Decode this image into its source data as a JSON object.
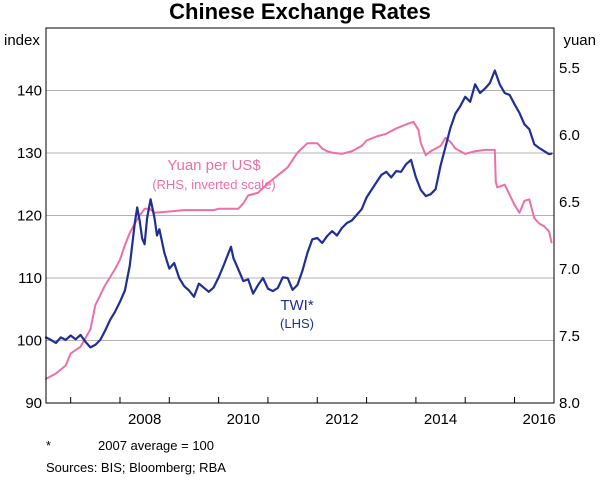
{
  "chart_data": {
    "type": "line",
    "title": "Chinese Exchange Rates",
    "left_axis": {
      "unit": "index",
      "ylim": [
        90,
        150
      ],
      "ticks": [
        90,
        100,
        110,
        120,
        130,
        140
      ]
    },
    "right_axis": {
      "unit": "yuan",
      "ylim": [
        5.2,
        8.0
      ],
      "inverted": true,
      "ticks": [
        5.5,
        6.0,
        6.5,
        7.0,
        7.5,
        8.0
      ],
      "tick_labels": [
        "5.5",
        "6.0",
        "6.5",
        "7.0",
        "7.5",
        "8.0"
      ]
    },
    "x_axis": {
      "xlim": [
        2006.5,
        2016.8
      ],
      "ticks": [
        2008,
        2010,
        2012,
        2014,
        2016
      ]
    },
    "grid": "horizontal",
    "series": [
      {
        "name": "Yuan per US$",
        "sublabel": "(RHS, inverted scale)",
        "axis": "right",
        "color": "#ee6fa8",
        "points": [
          [
            2006.5,
            7.82
          ],
          [
            2006.7,
            7.78
          ],
          [
            2006.9,
            7.72
          ],
          [
            2007.0,
            7.63
          ],
          [
            2007.2,
            7.58
          ],
          [
            2007.4,
            7.45
          ],
          [
            2007.5,
            7.27
          ],
          [
            2007.7,
            7.12
          ],
          [
            2007.9,
            7.0
          ],
          [
            2008.0,
            6.93
          ],
          [
            2008.1,
            6.82
          ],
          [
            2008.2,
            6.73
          ],
          [
            2008.3,
            6.66
          ],
          [
            2008.4,
            6.6
          ],
          [
            2008.5,
            6.55
          ],
          [
            2008.6,
            6.55
          ],
          [
            2008.7,
            6.58
          ],
          [
            2009.0,
            6.57
          ],
          [
            2009.3,
            6.56
          ],
          [
            2009.6,
            6.56
          ],
          [
            2009.9,
            6.56
          ],
          [
            2010.0,
            6.55
          ],
          [
            2010.2,
            6.55
          ],
          [
            2010.4,
            6.55
          ],
          [
            2010.5,
            6.51
          ],
          [
            2010.6,
            6.45
          ],
          [
            2010.8,
            6.43
          ],
          [
            2011.0,
            6.36
          ],
          [
            2011.2,
            6.3
          ],
          [
            2011.4,
            6.24
          ],
          [
            2011.6,
            6.13
          ],
          [
            2011.8,
            6.06
          ],
          [
            2012.0,
            6.06
          ],
          [
            2012.1,
            6.1
          ],
          [
            2012.2,
            6.12
          ],
          [
            2012.3,
            6.13
          ],
          [
            2012.5,
            6.14
          ],
          [
            2012.7,
            6.12
          ],
          [
            2012.9,
            6.08
          ],
          [
            2013.0,
            6.04
          ],
          [
            2013.2,
            6.01
          ],
          [
            2013.4,
            5.99
          ],
          [
            2013.6,
            5.95
          ],
          [
            2013.8,
            5.92
          ],
          [
            2013.95,
            5.9
          ],
          [
            2014.05,
            5.96
          ],
          [
            2014.1,
            6.06
          ],
          [
            2014.2,
            6.15
          ],
          [
            2014.3,
            6.12
          ],
          [
            2014.5,
            6.08
          ],
          [
            2014.6,
            6.02
          ],
          [
            2014.7,
            6.05
          ],
          [
            2014.8,
            6.1
          ],
          [
            2015.0,
            6.14
          ],
          [
            2015.2,
            6.12
          ],
          [
            2015.4,
            6.11
          ],
          [
            2015.6,
            6.11
          ],
          [
            2015.62,
            6.35
          ],
          [
            2015.65,
            6.39
          ],
          [
            2015.8,
            6.37
          ],
          [
            2016.0,
            6.52
          ],
          [
            2016.1,
            6.58
          ],
          [
            2016.2,
            6.49
          ],
          [
            2016.3,
            6.48
          ],
          [
            2016.4,
            6.62
          ],
          [
            2016.5,
            6.66
          ],
          [
            2016.6,
            6.68
          ],
          [
            2016.7,
            6.72
          ],
          [
            2016.75,
            6.8
          ]
        ]
      },
      {
        "name": "TWI*",
        "sublabel": "(LHS)",
        "axis": "left",
        "color": "#1f2f94",
        "points": [
          [
            2006.5,
            100.5
          ],
          [
            2006.6,
            100.1
          ],
          [
            2006.7,
            99.6
          ],
          [
            2006.8,
            100.5
          ],
          [
            2006.9,
            100.1
          ],
          [
            2007.0,
            100.8
          ],
          [
            2007.1,
            100.2
          ],
          [
            2007.2,
            100.9
          ],
          [
            2007.3,
            99.8
          ],
          [
            2007.4,
            98.9
          ],
          [
            2007.5,
            99.3
          ],
          [
            2007.6,
            100.1
          ],
          [
            2007.7,
            101.6
          ],
          [
            2007.8,
            103.3
          ],
          [
            2007.9,
            104.6
          ],
          [
            2008.0,
            106.2
          ],
          [
            2008.1,
            108.0
          ],
          [
            2008.2,
            112.0
          ],
          [
            2008.3,
            118.8
          ],
          [
            2008.35,
            121.3
          ],
          [
            2008.4,
            119.1
          ],
          [
            2008.45,
            116.3
          ],
          [
            2008.5,
            115.4
          ],
          [
            2008.55,
            119.6
          ],
          [
            2008.62,
            122.6
          ],
          [
            2008.7,
            119.6
          ],
          [
            2008.75,
            116.8
          ],
          [
            2008.8,
            117.8
          ],
          [
            2008.9,
            114.0
          ],
          [
            2009.0,
            111.5
          ],
          [
            2009.1,
            112.4
          ],
          [
            2009.2,
            110.0
          ],
          [
            2009.3,
            108.7
          ],
          [
            2009.4,
            108.0
          ],
          [
            2009.5,
            107.0
          ],
          [
            2009.6,
            109.1
          ],
          [
            2009.8,
            107.8
          ],
          [
            2009.9,
            108.5
          ],
          [
            2010.0,
            110.1
          ],
          [
            2010.1,
            112.0
          ],
          [
            2010.2,
            114.0
          ],
          [
            2010.25,
            115.0
          ],
          [
            2010.3,
            113.2
          ],
          [
            2010.4,
            111.4
          ],
          [
            2010.5,
            109.5
          ],
          [
            2010.6,
            109.8
          ],
          [
            2010.7,
            107.5
          ],
          [
            2010.8,
            108.9
          ],
          [
            2010.9,
            110.0
          ],
          [
            2011.0,
            108.3
          ],
          [
            2011.1,
            107.9
          ],
          [
            2011.2,
            108.4
          ],
          [
            2011.3,
            110.1
          ],
          [
            2011.4,
            110.0
          ],
          [
            2011.5,
            108.1
          ],
          [
            2011.6,
            108.9
          ],
          [
            2011.7,
            111.2
          ],
          [
            2011.8,
            114.0
          ],
          [
            2011.9,
            116.2
          ],
          [
            2012.0,
            116.4
          ],
          [
            2012.1,
            115.6
          ],
          [
            2012.2,
            116.7
          ],
          [
            2012.3,
            117.5
          ],
          [
            2012.4,
            116.8
          ],
          [
            2012.5,
            118.0
          ],
          [
            2012.6,
            118.8
          ],
          [
            2012.7,
            119.2
          ],
          [
            2012.8,
            120.1
          ],
          [
            2012.9,
            121.0
          ],
          [
            2013.0,
            122.9
          ],
          [
            2013.2,
            125.3
          ],
          [
            2013.3,
            126.5
          ],
          [
            2013.4,
            127.0
          ],
          [
            2013.5,
            126.1
          ],
          [
            2013.6,
            127.1
          ],
          [
            2013.7,
            127.0
          ],
          [
            2013.8,
            128.2
          ],
          [
            2013.9,
            128.9
          ],
          [
            2014.0,
            126.1
          ],
          [
            2014.1,
            124.1
          ],
          [
            2014.2,
            123.1
          ],
          [
            2014.3,
            123.4
          ],
          [
            2014.4,
            124.2
          ],
          [
            2014.5,
            128.0
          ],
          [
            2014.6,
            131.0
          ],
          [
            2014.7,
            134.0
          ],
          [
            2014.8,
            136.3
          ],
          [
            2014.9,
            137.5
          ],
          [
            2015.0,
            139.0
          ],
          [
            2015.1,
            138.2
          ],
          [
            2015.2,
            141.0
          ],
          [
            2015.3,
            139.6
          ],
          [
            2015.4,
            140.3
          ],
          [
            2015.5,
            141.2
          ],
          [
            2015.6,
            143.2
          ],
          [
            2015.7,
            141.0
          ],
          [
            2015.8,
            139.6
          ],
          [
            2015.9,
            139.3
          ],
          [
            2016.0,
            137.8
          ],
          [
            2016.1,
            136.4
          ],
          [
            2016.2,
            134.6
          ],
          [
            2016.3,
            133.8
          ],
          [
            2016.4,
            131.4
          ],
          [
            2016.5,
            130.8
          ],
          [
            2016.6,
            130.3
          ],
          [
            2016.7,
            129.8
          ],
          [
            2016.75,
            129.9
          ]
        ]
      }
    ],
    "footnote": "2007 average = 100",
    "footnote_mark": "*",
    "sources": "Sources:  BIS; Bloomberg; RBA"
  }
}
